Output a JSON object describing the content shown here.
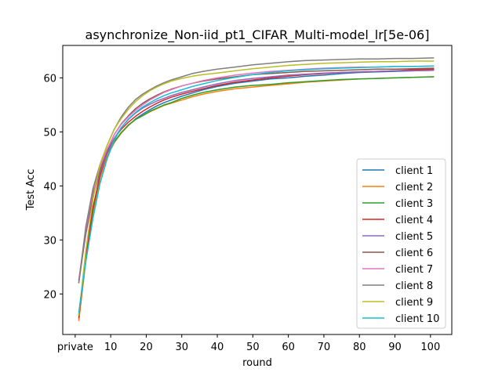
{
  "chart_data": {
    "type": "line",
    "title": "asynchronize_Non-iid_pt1_CIFAR_Multi-model_lr[5e-06]",
    "xlabel": "round",
    "ylabel": "Test Acc",
    "xlim": [
      -3.5,
      106
    ],
    "ylim": [
      12.5,
      66
    ],
    "x_ticks": [
      {
        "value": 0,
        "label": "private"
      },
      {
        "value": 10,
        "label": "10"
      },
      {
        "value": 20,
        "label": "20"
      },
      {
        "value": 30,
        "label": "30"
      },
      {
        "value": 40,
        "label": "40"
      },
      {
        "value": 50,
        "label": "50"
      },
      {
        "value": 60,
        "label": "60"
      },
      {
        "value": 70,
        "label": "70"
      },
      {
        "value": 80,
        "label": "80"
      },
      {
        "value": 90,
        "label": "90"
      },
      {
        "value": 100,
        "label": "100"
      }
    ],
    "y_ticks": [
      20,
      30,
      40,
      50,
      60
    ],
    "x": [
      1,
      3,
      5,
      7,
      9,
      11,
      13,
      15,
      17,
      19,
      21,
      23,
      25,
      27,
      30,
      33,
      36,
      40,
      45,
      50,
      55,
      60,
      65,
      70,
      75,
      80,
      85,
      90,
      95,
      101
    ],
    "legend_position": "lower right",
    "grid": false,
    "series": [
      {
        "name": "client 1",
        "color": "#1f77b4",
        "values": [
          16.0,
          27.0,
          35.5,
          41.5,
          45.5,
          48.0,
          49.8,
          51.2,
          52.4,
          53.3,
          54.1,
          54.8,
          55.4,
          55.9,
          56.6,
          57.2,
          57.8,
          58.4,
          59.0,
          59.4,
          59.8,
          60.0,
          60.3,
          60.5,
          60.8,
          61.0,
          61.1,
          61.2,
          61.3,
          61.4
        ]
      },
      {
        "name": "client 2",
        "color": "#ff7f0e",
        "values": [
          15.0,
          26.0,
          35.0,
          41.5,
          45.5,
          48.0,
          49.8,
          51.2,
          52.3,
          53.0,
          53.7,
          54.3,
          54.9,
          55.3,
          55.9,
          56.5,
          57.0,
          57.5,
          58.0,
          58.3,
          58.6,
          58.9,
          59.2,
          59.4,
          59.6,
          59.8,
          59.9,
          60.0,
          60.1,
          60.2
        ]
      },
      {
        "name": "client 3",
        "color": "#2ca02c",
        "values": [
          16.0,
          26.5,
          35.5,
          42.0,
          46.0,
          48.2,
          49.9,
          51.3,
          52.3,
          53.0,
          53.8,
          54.4,
          55.0,
          55.4,
          56.2,
          56.8,
          57.3,
          57.8,
          58.3,
          58.6,
          58.8,
          59.1,
          59.3,
          59.5,
          59.7,
          59.8,
          59.9,
          60.0,
          60.1,
          60.2
        ]
      },
      {
        "name": "client 4",
        "color": "#d62728",
        "values": [
          15.5,
          27.0,
          36.0,
          42.0,
          46.2,
          48.8,
          50.5,
          51.8,
          52.9,
          53.8,
          54.6,
          55.3,
          55.9,
          56.4,
          57.0,
          57.5,
          58.0,
          58.6,
          59.2,
          59.6,
          60.0,
          60.3,
          60.6,
          60.8,
          61.0,
          61.1,
          61.2,
          61.3,
          61.5,
          61.6
        ]
      },
      {
        "name": "client 5",
        "color": "#9467bd",
        "values": [
          22.5,
          31.0,
          38.0,
          42.5,
          46.0,
          48.8,
          50.8,
          52.3,
          53.5,
          54.4,
          55.1,
          55.7,
          56.2,
          56.7,
          57.3,
          57.8,
          58.3,
          58.9,
          59.5,
          59.9,
          60.2,
          60.5,
          60.7,
          60.9,
          61.0,
          61.1,
          61.2,
          61.3,
          61.3,
          61.4
        ]
      },
      {
        "name": "client 6",
        "color": "#8c564b",
        "values": [
          22.0,
          31.5,
          38.5,
          43.0,
          46.5,
          49.5,
          51.5,
          53.0,
          54.3,
          55.3,
          56.1,
          56.8,
          57.4,
          57.9,
          58.5,
          59.0,
          59.4,
          59.8,
          60.2,
          60.6,
          60.8,
          61.0,
          61.2,
          61.3,
          61.4,
          61.5,
          61.6,
          61.6,
          61.7,
          61.8
        ]
      },
      {
        "name": "client 7",
        "color": "#e377c2",
        "values": [
          22.5,
          32.0,
          39.0,
          43.5,
          46.8,
          49.5,
          51.4,
          52.8,
          54.0,
          55.0,
          55.9,
          56.6,
          57.3,
          57.8,
          58.5,
          59.0,
          59.5,
          60.0,
          60.5,
          60.9,
          61.2,
          61.4,
          61.6,
          61.8,
          61.9,
          62.0,
          62.0,
          62.1,
          62.1,
          62.2
        ]
      },
      {
        "name": "client 8",
        "color": "#7f7f7f",
        "values": [
          22.0,
          32.5,
          39.5,
          44.0,
          47.5,
          50.5,
          52.8,
          54.6,
          56.0,
          57.0,
          57.8,
          58.5,
          59.1,
          59.6,
          60.2,
          60.8,
          61.2,
          61.6,
          62.0,
          62.4,
          62.7,
          63.0,
          63.2,
          63.3,
          63.4,
          63.5,
          63.5,
          63.6,
          63.6,
          63.7
        ]
      },
      {
        "name": "client 9",
        "color": "#bcbd22",
        "values": [
          16.0,
          28.0,
          37.5,
          44.0,
          47.5,
          50.5,
          52.5,
          54.2,
          55.6,
          56.7,
          57.6,
          58.3,
          58.9,
          59.4,
          59.9,
          60.3,
          60.6,
          60.9,
          61.3,
          61.7,
          62.0,
          62.3,
          62.5,
          62.7,
          62.8,
          62.9,
          63.0,
          63.0,
          63.1,
          63.1
        ]
      },
      {
        "name": "client 10",
        "color": "#17becf",
        "values": [
          16.5,
          26.0,
          34.0,
          40.5,
          45.0,
          48.5,
          50.8,
          52.4,
          53.6,
          54.6,
          55.4,
          56.1,
          56.7,
          57.2,
          57.8,
          58.4,
          58.9,
          59.5,
          60.1,
          60.6,
          61.0,
          61.3,
          61.5,
          61.7,
          61.8,
          61.9,
          62.0,
          62.1,
          62.1,
          62.2
        ]
      }
    ]
  }
}
